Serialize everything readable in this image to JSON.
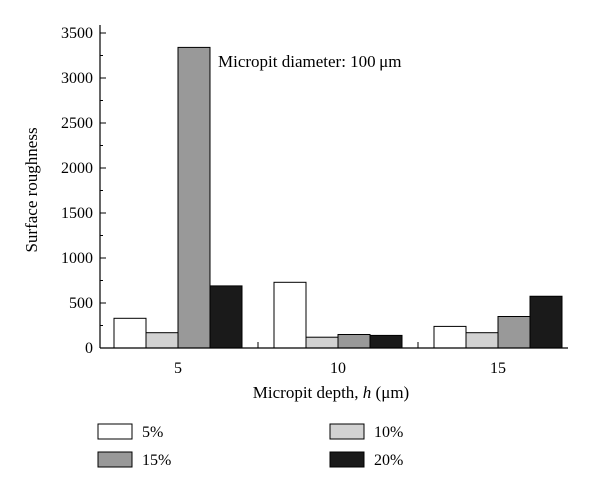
{
  "chart_data": {
    "type": "bar",
    "title": "",
    "annotation": "Micropit diameter: 100 μm",
    "xlabel": "Micropit depth, h (μm)",
    "xlabel_parts": {
      "prefix": "Micropit depth, ",
      "var": "h",
      "suffix": " (μm)"
    },
    "ylabel": "Surface roughness",
    "categories": [
      "5",
      "10",
      "15"
    ],
    "ylim": [
      0,
      3500
    ],
    "yticks": [
      0,
      500,
      1000,
      1500,
      2000,
      2500,
      3000,
      3500
    ],
    "grid": false,
    "legend_position": "bottom",
    "series": [
      {
        "name": "5%",
        "color": "#ffffff",
        "values": [
          330,
          730,
          240
        ]
      },
      {
        "name": "10%",
        "color": "#d2d2d2",
        "values": [
          170,
          120,
          170
        ]
      },
      {
        "name": "15%",
        "color": "#999999",
        "values": [
          3340,
          150,
          350
        ]
      },
      {
        "name": "20%",
        "color": "#1a1a1a",
        "values": [
          690,
          140,
          575
        ]
      }
    ]
  }
}
